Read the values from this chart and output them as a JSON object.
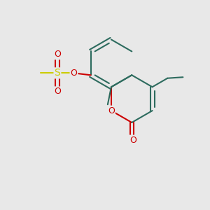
{
  "bg_color": "#e8e8e8",
  "cc": "#2d6b5e",
  "oc": "#cc0000",
  "sc": "#cccc00",
  "lw": 1.5,
  "fs": 9,
  "xlim": [
    0,
    10
  ],
  "ylim": [
    0,
    10
  ]
}
